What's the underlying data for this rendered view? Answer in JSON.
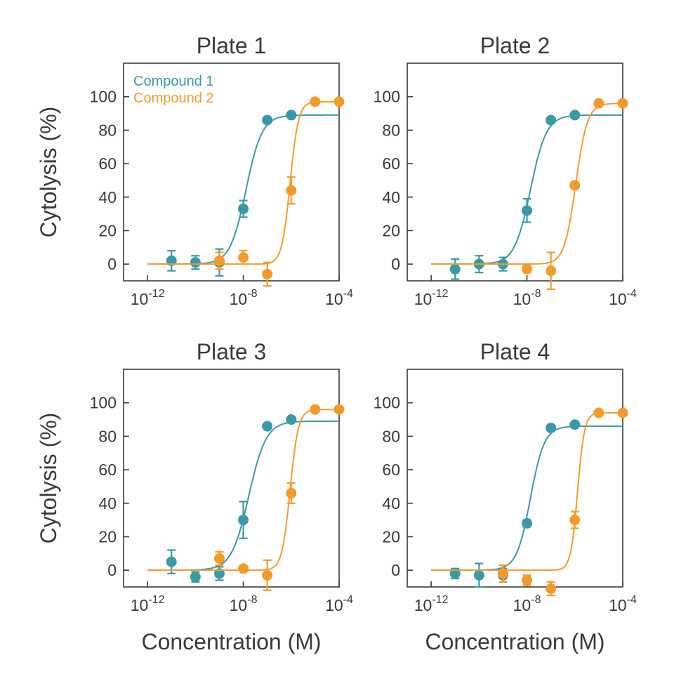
{
  "chart_data": {
    "type": "scatter",
    "ylabel": "Cytolysis (%)",
    "xlabel": "Concentration (M)",
    "x_scale": "log",
    "xlim": [
      1e-13,
      0.0001
    ],
    "x_ticks": [
      1e-12,
      1e-08,
      0.0001
    ],
    "x_tick_base": "10",
    "x_tick_exponents": [
      "-12",
      "-8",
      "-4"
    ],
    "ylim": [
      -10,
      120
    ],
    "y_ticks": [
      "0",
      "20",
      "40",
      "60",
      "80",
      "100"
    ],
    "grid": false,
    "legend": {
      "placement": "top-left",
      "entries": [
        "Compound 1",
        "Compound 2"
      ]
    },
    "colors": {
      "Compound 1": "#3a99a6",
      "Compound 2": "#f39b29",
      "axis": "#3a3a3a"
    },
    "x": [
      1e-12,
      1e-11,
      1e-10,
      1e-09,
      1e-08,
      1e-07,
      1e-06,
      1e-05,
      0.0001
    ],
    "panels": [
      {
        "title": "Plate 1",
        "series": [
          {
            "name": "Compound 1",
            "x": [
              1e-11,
              1e-10,
              1e-09,
              1e-08,
              1e-07,
              1e-06
            ],
            "values": [
              2,
              1,
              1,
              33,
              86,
              89
            ],
            "errors": [
              6,
              4,
              8,
              5,
              1,
              1
            ],
            "fit": {
              "bottom": 0,
              "top": 89,
              "ec50": 1.3e-08,
              "hill": 1.3
            }
          },
          {
            "name": "Compound 2",
            "x": [
              1e-09,
              1e-08,
              1e-07,
              1e-06,
              1e-05,
              0.0001
            ],
            "values": [
              2,
              4,
              -6,
              44,
              97,
              97
            ],
            "errors": [
              5,
              4,
              7,
              8,
              1,
              1
            ],
            "fit": {
              "bottom": 0,
              "top": 97,
              "ec50": 9e-07,
              "hill": 2.5
            }
          }
        ]
      },
      {
        "title": "Plate 2",
        "series": [
          {
            "name": "Compound 1",
            "x": [
              1e-11,
              1e-10,
              1e-09,
              1e-08,
              1e-07,
              1e-06
            ],
            "values": [
              -3,
              0,
              0,
              32,
              86,
              89
            ],
            "errors": [
              6,
              5,
              4,
              7,
              1,
              1
            ],
            "fit": {
              "bottom": 0,
              "top": 89,
              "ec50": 1.4e-08,
              "hill": 1.3
            }
          },
          {
            "name": "Compound 2",
            "x": [
              1e-08,
              1e-07,
              1e-06,
              1e-05,
              0.0001
            ],
            "values": [
              -3,
              -4,
              47,
              96,
              96
            ],
            "errors": [
              2,
              11,
              2,
              1,
              1
            ],
            "fit": {
              "bottom": 0,
              "top": 96,
              "ec50": 1.1e-06,
              "hill": 1.8
            }
          }
        ]
      },
      {
        "title": "Plate 3",
        "series": [
          {
            "name": "Compound 1",
            "x": [
              1e-11,
              1e-10,
              1e-09,
              1e-08,
              1e-07,
              1e-06
            ],
            "values": [
              5,
              -4,
              -2,
              30,
              86,
              90
            ],
            "errors": [
              7,
              3,
              4,
              11,
              1,
              1
            ],
            "fit": {
              "bottom": 0,
              "top": 89,
              "ec50": 1.7e-08,
              "hill": 1.2
            }
          },
          {
            "name": "Compound 2",
            "x": [
              1e-09,
              1e-08,
              1e-07,
              1e-06,
              1e-05,
              0.0001
            ],
            "values": [
              7,
              1,
              -3,
              46,
              96,
              96
            ],
            "errors": [
              4,
              1,
              9,
              6,
              1,
              1
            ],
            "fit": {
              "bottom": 0,
              "top": 96,
              "ec50": 9e-07,
              "hill": 2.5
            }
          }
        ]
      },
      {
        "title": "Plate 4",
        "series": [
          {
            "name": "Compound 1",
            "x": [
              1e-11,
              1e-10,
              1e-09,
              1e-08,
              1e-07,
              1e-06
            ],
            "values": [
              -2,
              -3,
              -3,
              28,
              85,
              87
            ],
            "errors": [
              3,
              7,
              4,
              2,
              1,
              1
            ],
            "fit": {
              "bottom": 0,
              "top": 86,
              "ec50": 1.4e-08,
              "hill": 1.5
            }
          },
          {
            "name": "Compound 2",
            "x": [
              1e-09,
              1e-08,
              1e-07,
              1e-06,
              1e-05,
              0.0001
            ],
            "values": [
              -2,
              -6,
              -11,
              30,
              94,
              94
            ],
            "errors": [
              5,
              3,
              4,
              5,
              1,
              1
            ],
            "fit": {
              "bottom": 0,
              "top": 94,
              "ec50": 1.3e-06,
              "hill": 3.0
            }
          }
        ]
      }
    ]
  }
}
